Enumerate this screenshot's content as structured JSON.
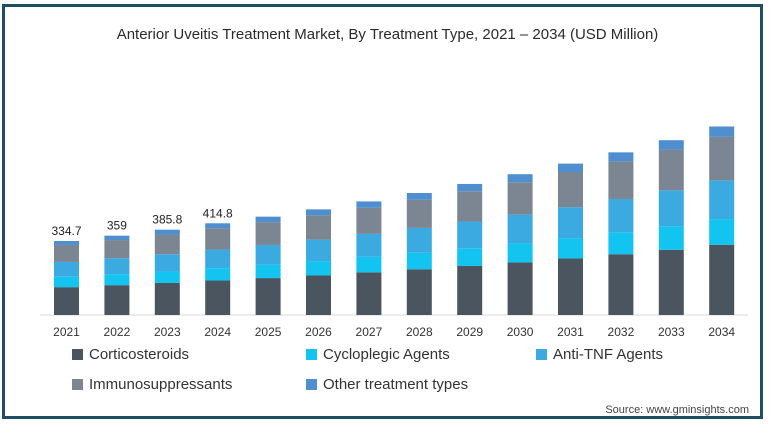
{
  "chart_data": {
    "type": "bar",
    "stacked": true,
    "title": "Anterior Uveitis Treatment Market, By Treatment Type, 2021 – 2034 (USD Million)",
    "xlabel": "",
    "ylabel": "",
    "categories": [
      "2021",
      "2022",
      "2023",
      "2024",
      "2025",
      "2026",
      "2027",
      "2028",
      "2029",
      "2030",
      "2031",
      "2032",
      "2033",
      "2034"
    ],
    "series": [
      {
        "name": "Corticosteroids",
        "color": "#4a5560",
        "values": [
          126,
          135,
          145,
          156,
          167,
          179,
          193,
          207,
          222,
          238,
          256,
          275,
          295,
          318
        ]
      },
      {
        "name": "Cycloplegic Agents",
        "color": "#12c4ef",
        "values": [
          47,
          50,
          52,
          56,
          60,
          65,
          70,
          75,
          80,
          86,
          92,
          99,
          107,
          116
        ]
      },
      {
        "name": "Anti-TNF Agents",
        "color": "#3aaae0",
        "values": [
          67,
          72,
          78,
          84,
          90,
          97,
          104,
          112,
          121,
          130,
          140,
          151,
          162,
          175
        ]
      },
      {
        "name": "Immunosuppressants",
        "color": "#7b8692",
        "values": [
          77,
          82,
          89,
          96,
          103,
          110,
          118,
          127,
          137,
          147,
          159,
          170,
          183,
          197
        ]
      },
      {
        "name": "Other treatment types",
        "color": "#4f8fcf",
        "values": [
          18,
          20,
          22,
          23,
          25,
          27,
          29,
          31,
          33,
          36,
          38,
          41,
          44,
          47
        ]
      }
    ],
    "data_labels": [
      "334.7",
      "359",
      "385.8",
      "414.8"
    ],
    "ylim": [
      0,
      900
    ],
    "grid": false,
    "legend_position": "bottom"
  },
  "source": "Source: www.gminsights.com"
}
